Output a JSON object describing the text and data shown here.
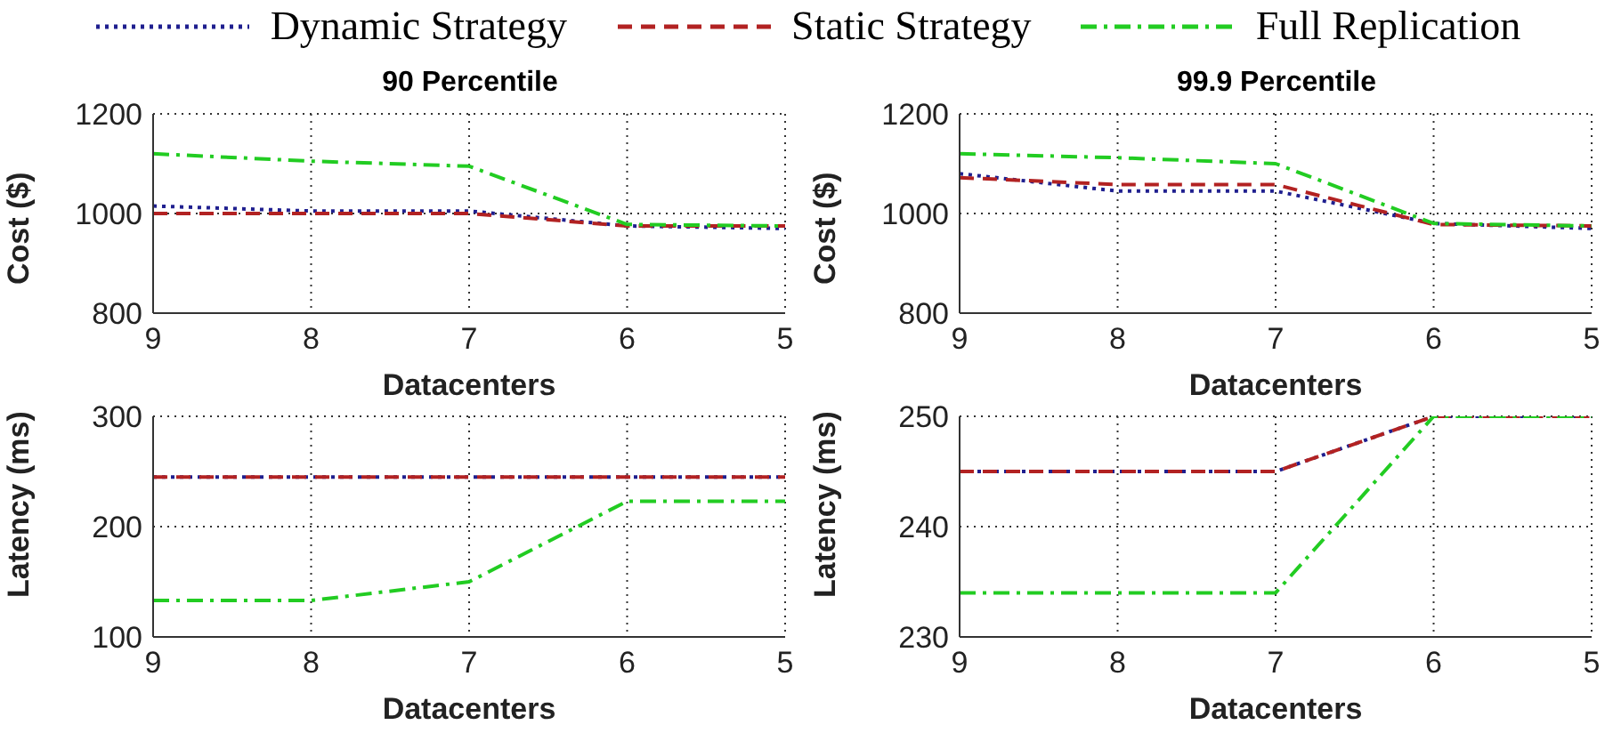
{
  "chart_data": [
    {
      "type": "line",
      "title": "90 Percentile",
      "xlabel": "Datacenters",
      "ylabel": "Cost ($)",
      "x": [
        9,
        8,
        7,
        6,
        5
      ],
      "xlim": [
        9,
        5
      ],
      "xticks": [
        9,
        8,
        7,
        6,
        5
      ],
      "ylim": [
        800,
        1200
      ],
      "yticks": [
        800,
        1000,
        1200
      ],
      "grid": true,
      "legend": "top",
      "marker": "none",
      "series": [
        {
          "name": "Dynamic Strategy",
          "color": "#1f1f8f",
          "line_style": "dotted",
          "values": [
            1015,
            1005,
            1005,
            975,
            970
          ]
        },
        {
          "name": "Static Strategy",
          "color": "#b22222",
          "line_style": "dashed",
          "values": [
            1000,
            1000,
            1000,
            975,
            975
          ]
        },
        {
          "name": "Full Replication",
          "color": "#22cc22",
          "line_style": "dashdot",
          "values": [
            1120,
            1105,
            1095,
            978,
            975
          ]
        }
      ]
    },
    {
      "type": "line",
      "title": "99.9 Percentile",
      "xlabel": "Datacenters",
      "ylabel": "Cost ($)",
      "x": [
        9,
        8,
        7,
        6,
        5
      ],
      "xlim": [
        9,
        5
      ],
      "xticks": [
        9,
        8,
        7,
        6,
        5
      ],
      "ylim": [
        800,
        1200
      ],
      "yticks": [
        800,
        1000,
        1200
      ],
      "grid": true,
      "marker": "none",
      "series": [
        {
          "color": "#1f1f8f",
          "line_style": "dotted",
          "values": [
            1080,
            1045,
            1045,
            980,
            970
          ]
        },
        {
          "color": "#b22222",
          "line_style": "dashed",
          "values": [
            1072,
            1058,
            1058,
            978,
            975
          ]
        },
        {
          "color": "#22cc22",
          "line_style": "dashdot",
          "values": [
            1120,
            1112,
            1100,
            980,
            975
          ]
        }
      ]
    },
    {
      "type": "line",
      "xlabel": "Datacenters",
      "ylabel": "Latency (ms)",
      "x": [
        9,
        8,
        7,
        6,
        5
      ],
      "xlim": [
        9,
        5
      ],
      "xticks": [
        9,
        8,
        7,
        6,
        5
      ],
      "ylim": [
        100,
        300
      ],
      "yticks": [
        100,
        200,
        300
      ],
      "grid": true,
      "marker": "none",
      "series": [
        {
          "color": "#1f1f8f",
          "line_style": "dotted",
          "values": [
            245,
            245,
            245,
            245,
            245
          ]
        },
        {
          "color": "#b22222",
          "line_style": "dashed",
          "values": [
            245,
            245,
            245,
            245,
            245
          ]
        },
        {
          "color": "#22cc22",
          "line_style": "dashdot",
          "values": [
            133,
            133,
            150,
            223,
            223
          ]
        }
      ]
    },
    {
      "type": "line",
      "xlabel": "Datacenters",
      "ylabel": "Latency (ms)",
      "x": [
        9,
        8,
        7,
        6,
        5
      ],
      "xlim": [
        9,
        5
      ],
      "xticks": [
        9,
        8,
        7,
        6,
        5
      ],
      "ylim": [
        230,
        250
      ],
      "yticks": [
        230,
        240,
        250
      ],
      "grid": true,
      "marker": "none",
      "series": [
        {
          "color": "#1f1f8f",
          "line_style": "dotted",
          "values": [
            245,
            245,
            245,
            250,
            250
          ]
        },
        {
          "color": "#b22222",
          "line_style": "dashed",
          "values": [
            245,
            245,
            245,
            250,
            250
          ]
        },
        {
          "color": "#22cc22",
          "line_style": "dashdot",
          "values": [
            234,
            234,
            234,
            250,
            250
          ]
        }
      ]
    }
  ]
}
